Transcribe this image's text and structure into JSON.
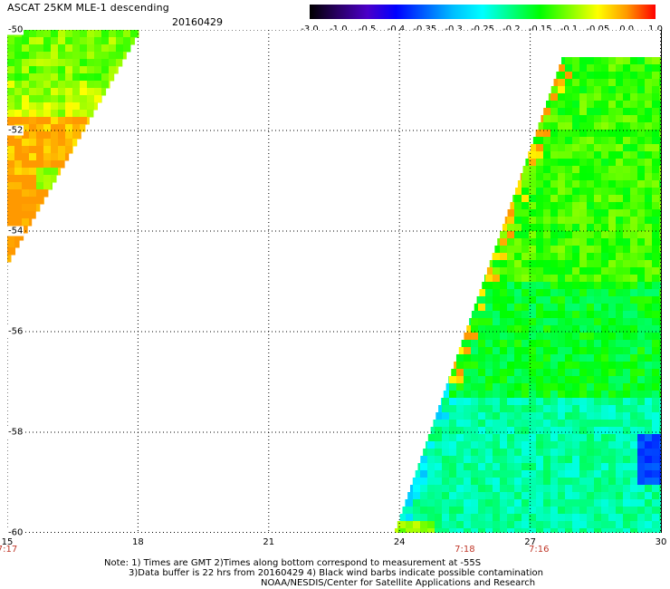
{
  "header": {
    "title": "ASCAT 25KM MLE-1 descending",
    "date": "20160429"
  },
  "colorbar": {
    "labels": [
      "-3.0",
      "-1.0",
      "-0.5",
      "-0.4",
      "-0.35",
      "-0.3",
      "-0.25",
      "-0.2",
      "-0.15",
      "-0.1",
      "-0.05",
      "0.0",
      "1.0"
    ],
    "colors": [
      "#000000",
      "#2a0066",
      "#4b00c8",
      "#0000ff",
      "#0060ff",
      "#00c0ff",
      "#00ffff",
      "#00ff80",
      "#00ff00",
      "#80ff00",
      "#ffff00",
      "#ff9900",
      "#ff0000"
    ]
  },
  "axes": {
    "lat_labels": [
      "-50",
      "-52",
      "-54",
      "-56",
      "-58",
      "-60"
    ],
    "lat_values": [
      -50,
      -52,
      -54,
      -56,
      -58,
      -60
    ],
    "lon_labels": [
      "15",
      "18",
      "21",
      "24",
      "27",
      "30"
    ],
    "lon_values": [
      15,
      18,
      21,
      24,
      27,
      30
    ],
    "lat_range": [
      -60,
      -50
    ],
    "lon_range": [
      15,
      30
    ]
  },
  "time_labels": [
    {
      "text": "7:17",
      "lon": 15
    },
    {
      "text": "7:18",
      "lon": 25.5
    },
    {
      "text": "7:16",
      "lon": 27.2
    }
  ],
  "notes": {
    "line1": "Note: 1) Times are GMT 2)Times along bottom correspond to measurement at -55S",
    "line2": "3)Data buffer is 22 hrs from 20160429 4) Black wind barbs indicate possible contamination",
    "line3": "NOAA/NESDIS/Center for Satellite Applications and Research"
  }
}
